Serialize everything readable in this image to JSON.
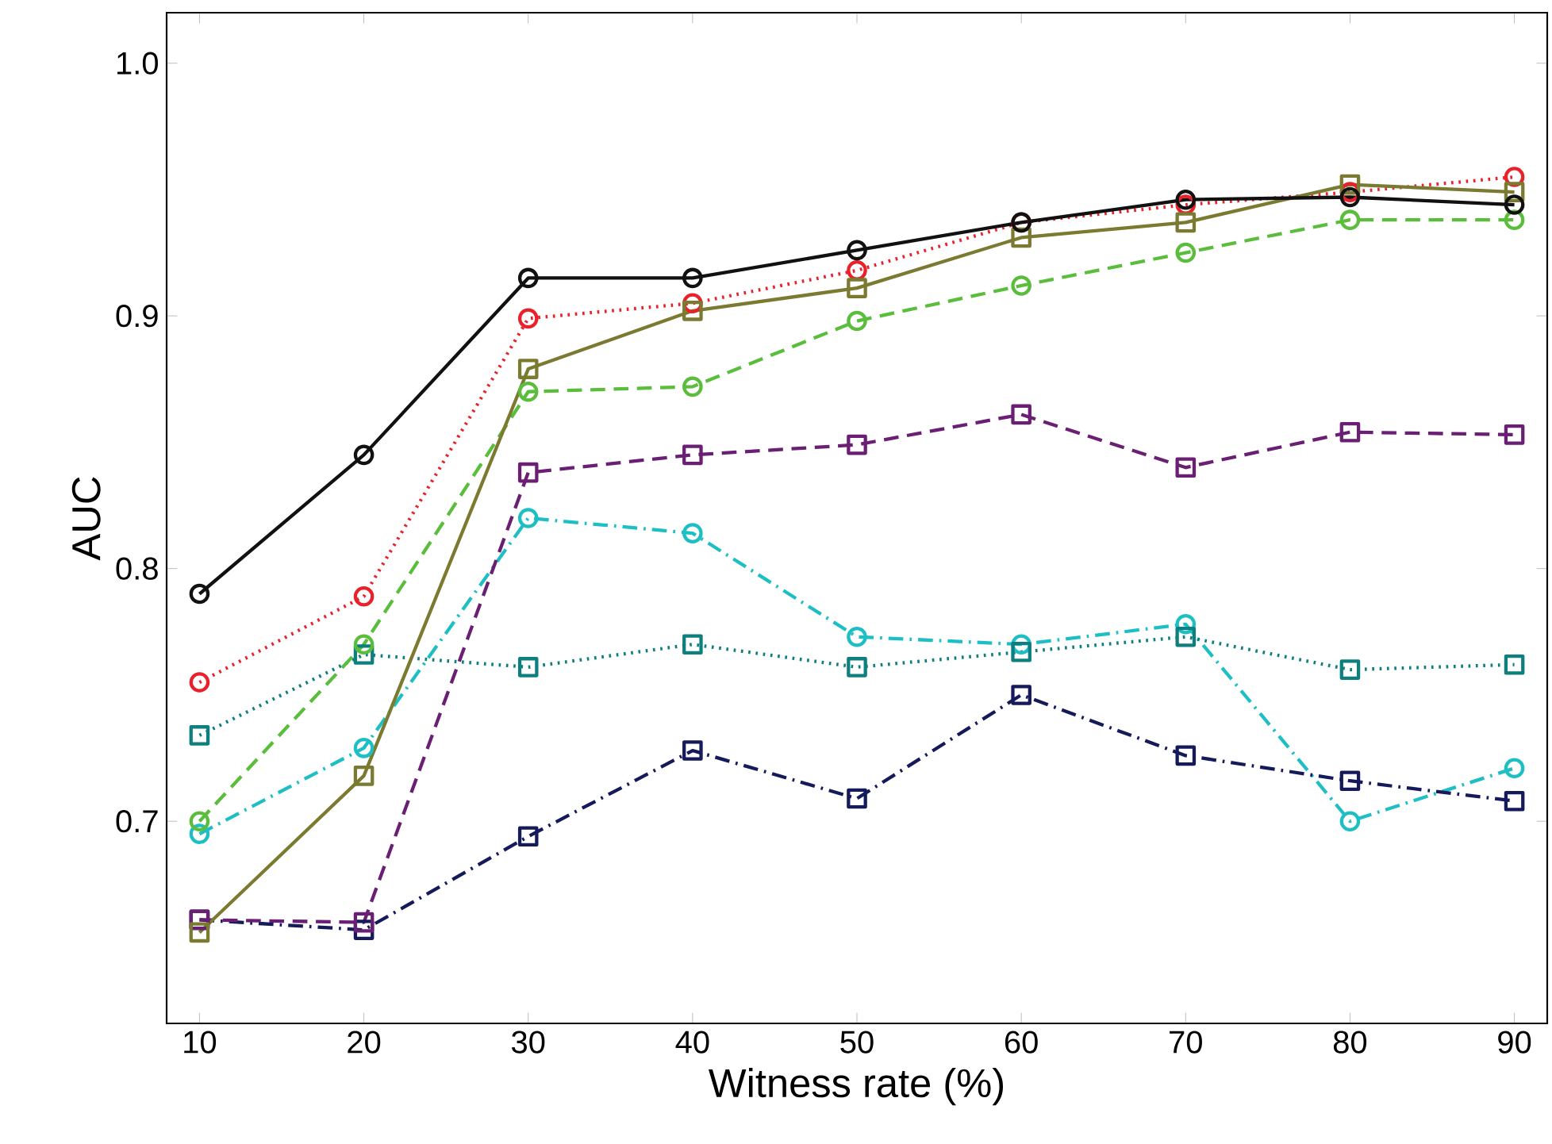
{
  "chart_data": {
    "type": "line",
    "xlabel": "Witness rate (%)",
    "ylabel": "AUC",
    "x": [
      10,
      20,
      30,
      40,
      50,
      60,
      70,
      80,
      90
    ],
    "xlim": [
      8,
      92
    ],
    "ylim": [
      0.62,
      1.02
    ],
    "xticks": [
      10,
      20,
      30,
      40,
      50,
      60,
      70,
      80,
      90
    ],
    "yticks": [
      0.7,
      0.8,
      0.9,
      {
        "value": 1.0,
        "label": "1.0"
      }
    ],
    "series": [
      {
        "color": "#e8212b",
        "marker": "circle",
        "line_style": "dotted",
        "values": [
          0.755,
          0.789,
          0.899,
          0.905,
          0.918,
          0.937,
          0.944,
          0.949,
          0.955
        ]
      },
      {
        "color": "#1ebfc4",
        "marker": "circle",
        "line_style": "dashdot",
        "values": [
          0.695,
          0.729,
          0.82,
          0.814,
          0.773,
          0.77,
          0.778,
          0.7,
          0.721
        ]
      },
      {
        "color": "#0e7f7f",
        "marker": "square",
        "line_style": "dotted",
        "values": [
          0.734,
          0.766,
          0.761,
          0.77,
          0.761,
          0.767,
          0.773,
          0.76,
          0.762
        ]
      },
      {
        "color": "#141a5a",
        "marker": "square",
        "line_style": "dashdot",
        "values": [
          0.661,
          0.657,
          0.694,
          0.728,
          0.709,
          0.75,
          0.726,
          0.716,
          0.708
        ]
      },
      {
        "color": "#6b1f74",
        "marker": "square",
        "line_style": "dashed",
        "values": [
          0.661,
          0.66,
          0.838,
          0.845,
          0.849,
          0.861,
          0.84,
          0.854,
          0.853
        ]
      },
      {
        "color": "#5bbd3c",
        "marker": "circle",
        "line_style": "dashed",
        "values": [
          0.7,
          0.77,
          0.87,
          0.872,
          0.898,
          0.912,
          0.925,
          0.938,
          0.938
        ]
      },
      {
        "color": "#7a7a30",
        "marker": "square",
        "line_style": "solid",
        "values": [
          0.656,
          0.718,
          0.879,
          0.902,
          0.911,
          0.931,
          0.937,
          0.952,
          0.949
        ]
      },
      {
        "color": "#111111",
        "marker": "circle",
        "line_style": "solid",
        "values": [
          0.79,
          0.845,
          0.915,
          0.915,
          0.926,
          0.937,
          0.946,
          0.947,
          0.944
        ]
      }
    ]
  }
}
